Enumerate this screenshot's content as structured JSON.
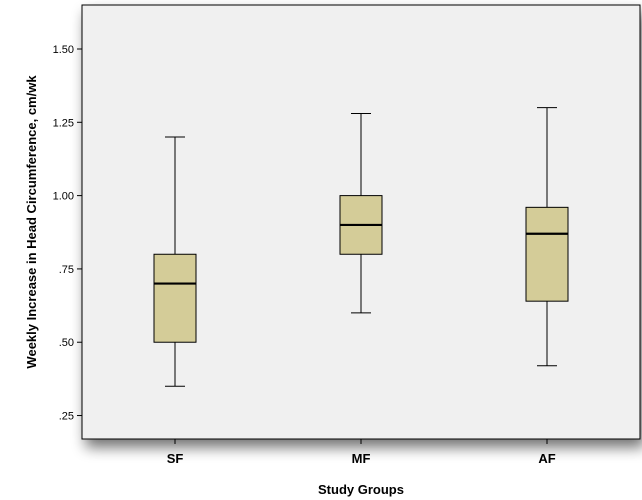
{
  "chart_data": {
    "type": "box",
    "xlabel": "Study Groups",
    "ylabel": "Weekly Increase in Head Circumference, cm/wk",
    "ylim": [
      0.17,
      1.65
    ],
    "yticks": [
      0.25,
      0.5,
      0.75,
      1.0,
      1.25,
      1.5
    ],
    "ytick_labels": [
      ".25",
      ".50",
      ".75",
      "1.00",
      "1.25",
      "1.50"
    ],
    "categories": [
      "SF",
      "MF",
      "AF"
    ],
    "boxes": [
      {
        "category": "SF",
        "min": 0.35,
        "q1": 0.5,
        "median": 0.7,
        "q3": 0.8,
        "max": 1.2
      },
      {
        "category": "MF",
        "min": 0.6,
        "q1": 0.8,
        "median": 0.9,
        "q3": 1.0,
        "max": 1.28
      },
      {
        "category": "AF",
        "min": 0.42,
        "q1": 0.64,
        "median": 0.87,
        "q3": 0.96,
        "max": 1.3
      }
    ],
    "colors": {
      "plot_background": "#f0f0f0",
      "box_fill": "#d4cc98",
      "stroke": "#000000"
    },
    "grid": false,
    "legend": "none"
  }
}
